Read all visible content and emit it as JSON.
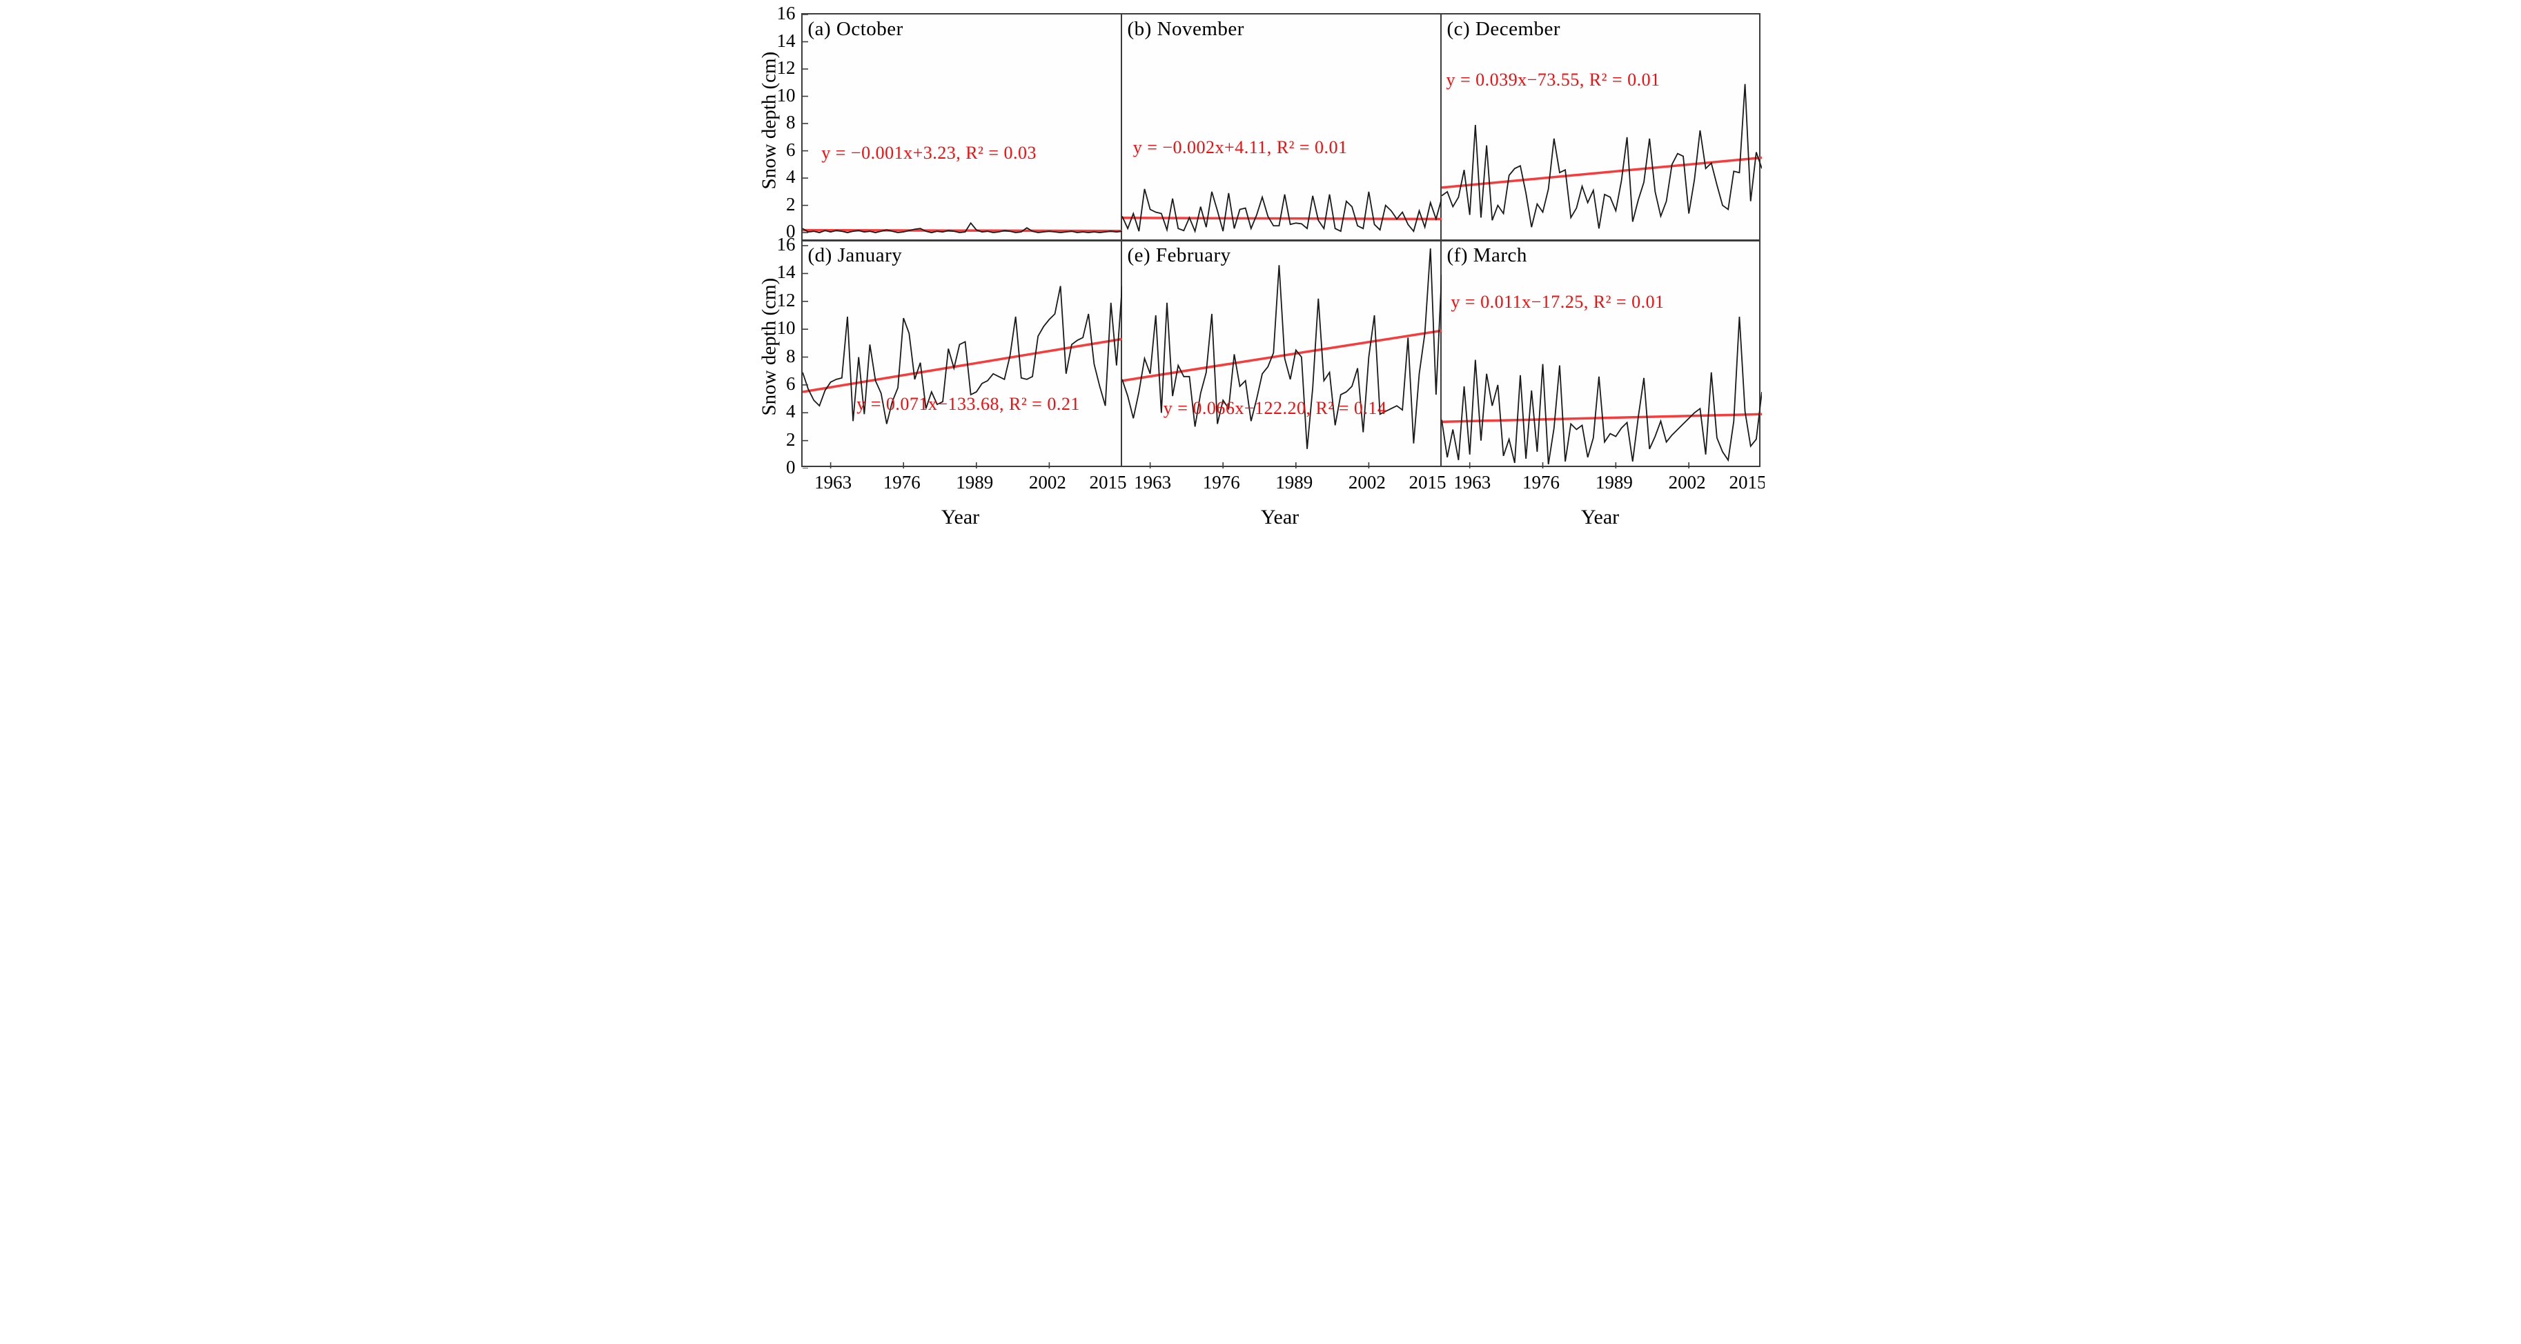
{
  "figure": {
    "ylabel": "Snow depth (cm)",
    "xlabel": "Year",
    "colors": {
      "data_line": "#1a1a1a",
      "trend_line": "#f73c3c",
      "equation_text": "#f90b0b",
      "axis_border": "#3c3c3c",
      "background": "#ffffff"
    }
  },
  "chart_data": [
    {
      "type": "line",
      "panel": "a",
      "title": "(a) October",
      "equation": "y = −0.001x+3.23, R² = 0.03",
      "x": {
        "start": 1958,
        "end": 2015,
        "step": 1
      },
      "x_ticks": [
        1963,
        1976,
        1989,
        2002,
        2015
      ],
      "y_ticks": [
        16,
        14,
        12,
        10,
        8,
        6,
        4,
        2,
        0
      ],
      "ylim": [
        -0.6,
        16
      ],
      "trend": {
        "start": 0.18,
        "end": 0.12
      },
      "values": [
        0.3,
        0.05,
        0.1,
        0.0,
        0.15,
        0.05,
        0.15,
        0.1,
        0.0,
        0.1,
        0.15,
        0.05,
        0.1,
        0.0,
        0.1,
        0.2,
        0.1,
        0.0,
        0.05,
        0.15,
        0.25,
        0.3,
        0.1,
        0.0,
        0.1,
        0.05,
        0.15,
        0.1,
        0.0,
        0.05,
        0.7,
        0.2,
        0.05,
        0.1,
        0.0,
        0.05,
        0.15,
        0.1,
        0.0,
        0.05,
        0.35,
        0.1,
        0.0,
        0.05,
        0.1,
        0.05,
        0.0,
        0.05,
        0.1,
        0.0,
        0.05,
        0.0,
        0.05,
        0.0,
        0.05,
        0.1,
        0.05,
        0.1
      ]
    },
    {
      "type": "line",
      "panel": "b",
      "title": "(b) November",
      "equation": "y = −0.002x+4.11, R² = 0.01",
      "x": {
        "start": 1958,
        "end": 2015,
        "step": 1
      },
      "x_ticks": [
        1963,
        1976,
        1989,
        2002,
        2015
      ],
      "y_ticks": [
        16,
        14,
        12,
        10,
        8,
        6,
        4,
        2,
        0
      ],
      "ylim": [
        -0.6,
        16
      ],
      "trend": {
        "start": 1.08,
        "end": 1.0
      },
      "values": [
        1.2,
        0.3,
        1.4,
        0.1,
        3.2,
        1.7,
        1.5,
        1.4,
        0.2,
        2.5,
        0.3,
        0.15,
        1.1,
        0.1,
        1.9,
        0.4,
        3.0,
        1.6,
        0.1,
        2.9,
        0.3,
        1.7,
        1.8,
        0.3,
        1.3,
        2.6,
        1.2,
        0.5,
        0.5,
        2.8,
        0.6,
        0.7,
        0.65,
        0.3,
        2.7,
        0.9,
        0.3,
        2.8,
        0.3,
        0.1,
        2.3,
        1.9,
        0.5,
        0.3,
        3.0,
        0.6,
        0.2,
        2.0,
        1.6,
        1.0,
        1.5,
        0.6,
        0.1,
        1.6,
        0.4,
        2.2,
        1.0,
        2.5
      ]
    },
    {
      "type": "line",
      "panel": "c",
      "title": "(c) December",
      "equation": "y = 0.039x−73.55, R² = 0.01",
      "x": {
        "start": 1958,
        "end": 2015,
        "step": 1
      },
      "x_ticks": [
        1963,
        1976,
        1989,
        2002,
        2015
      ],
      "y_ticks": [
        16,
        14,
        12,
        10,
        8,
        6,
        4,
        2,
        0
      ],
      "ylim": [
        -0.6,
        16
      ],
      "trend": {
        "start": 3.3,
        "end": 5.5
      },
      "values": [
        2.7,
        3.0,
        1.9,
        2.6,
        4.6,
        1.3,
        7.9,
        1.1,
        6.4,
        0.9,
        2.0,
        1.4,
        4.2,
        4.7,
        4.9,
        2.9,
        0.4,
        2.1,
        1.5,
        3.2,
        6.9,
        4.4,
        4.6,
        1.1,
        1.8,
        3.4,
        2.2,
        3.1,
        0.3,
        2.8,
        2.6,
        1.6,
        3.8,
        7.0,
        0.8,
        2.4,
        3.7,
        6.9,
        3.0,
        1.2,
        2.3,
        5.0,
        5.8,
        5.6,
        1.4,
        3.9,
        7.5,
        4.7,
        5.1,
        3.5,
        2.0,
        1.7,
        4.5,
        4.4,
        10.9,
        2.3,
        5.9,
        4.7
      ]
    },
    {
      "type": "line",
      "panel": "d",
      "title": "(d) January",
      "equation": "y = 0.071x−133.68, R² = 0.21",
      "x": {
        "start": 1958,
        "end": 2015,
        "step": 1
      },
      "x_ticks": [
        1963,
        1976,
        1989,
        2002,
        2015
      ],
      "y_ticks": [
        16,
        14,
        12,
        10,
        8,
        6,
        4,
        2,
        0
      ],
      "ylim": [
        0,
        16.35
      ],
      "trend": {
        "start": 5.5,
        "end": 9.3
      },
      "values": [
        6.9,
        5.7,
        4.9,
        4.5,
        5.6,
        6.2,
        6.4,
        6.5,
        10.9,
        3.4,
        8.0,
        3.9,
        8.9,
        6.3,
        5.4,
        3.2,
        4.8,
        5.8,
        10.8,
        9.7,
        6.4,
        7.6,
        4.3,
        5.5,
        4.6,
        4.8,
        8.6,
        7.2,
        8.9,
        9.1,
        5.3,
        5.5,
        6.1,
        6.3,
        6.8,
        6.6,
        6.4,
        8.1,
        10.9,
        6.5,
        6.4,
        6.6,
        9.5,
        10.2,
        10.7,
        11.1,
        13.1,
        6.8,
        8.9,
        9.2,
        9.4,
        11.1,
        7.5,
        5.9,
        4.5,
        11.9,
        7.4,
        13.1
      ]
    },
    {
      "type": "line",
      "panel": "e",
      "title": "(e) February",
      "equation": "y = 0.066x−122.20, R² = 0.14",
      "x": {
        "start": 1958,
        "end": 2015,
        "step": 1
      },
      "x_ticks": [
        1963,
        1976,
        1989,
        2002,
        2015
      ],
      "y_ticks": [
        16,
        14,
        12,
        10,
        8,
        6,
        4,
        2,
        0
      ],
      "ylim": [
        0,
        16.35
      ],
      "trend": {
        "start": 6.3,
        "end": 9.9
      },
      "values": [
        6.4,
        5.2,
        3.6,
        5.5,
        7.9,
        6.8,
        11.0,
        4.0,
        11.9,
        5.2,
        7.4,
        6.6,
        6.6,
        3.0,
        5.4,
        6.9,
        11.1,
        3.2,
        4.9,
        4.3,
        8.2,
        5.9,
        6.3,
        3.4,
        5.0,
        6.8,
        7.3,
        8.3,
        14.6,
        7.9,
        6.4,
        8.5,
        8.0,
        1.4,
        5.8,
        12.2,
        6.3,
        6.9,
        3.1,
        5.3,
        5.5,
        5.9,
        7.2,
        2.6,
        8.0,
        11.0,
        3.9,
        4.1,
        4.3,
        4.5,
        4.2,
        9.4,
        1.8,
        6.8,
        9.7,
        15.8,
        5.3,
        13.9
      ]
    },
    {
      "type": "line",
      "panel": "f",
      "title": "(f) March",
      "equation": "y = 0.011x−17.25, R² = 0.01",
      "x": {
        "start": 1958,
        "end": 2015,
        "step": 1
      },
      "x_ticks": [
        1963,
        1976,
        1989,
        2002,
        2015
      ],
      "y_ticks": [
        16,
        14,
        12,
        10,
        8,
        6,
        4,
        2,
        0
      ],
      "ylim": [
        0,
        16.35
      ],
      "trend": {
        "start": 3.35,
        "end": 3.9
      },
      "values": [
        3.5,
        0.8,
        2.8,
        0.6,
        5.9,
        1.0,
        7.8,
        2.0,
        6.8,
        4.5,
        6.0,
        0.9,
        2.1,
        0.4,
        6.7,
        0.7,
        5.6,
        1.2,
        7.5,
        0.3,
        2.9,
        7.4,
        0.5,
        3.2,
        2.8,
        3.1,
        0.8,
        2.2,
        6.6,
        1.9,
        2.5,
        2.3,
        2.9,
        3.3,
        0.5,
        3.7,
        6.5,
        1.4,
        2.3,
        3.4,
        1.9,
        2.4,
        2.8,
        3.2,
        3.6,
        4.0,
        4.3,
        1.0,
        6.9,
        2.2,
        1.2,
        0.6,
        3.4,
        10.9,
        4.1,
        1.6,
        2.1,
        5.5
      ]
    }
  ]
}
